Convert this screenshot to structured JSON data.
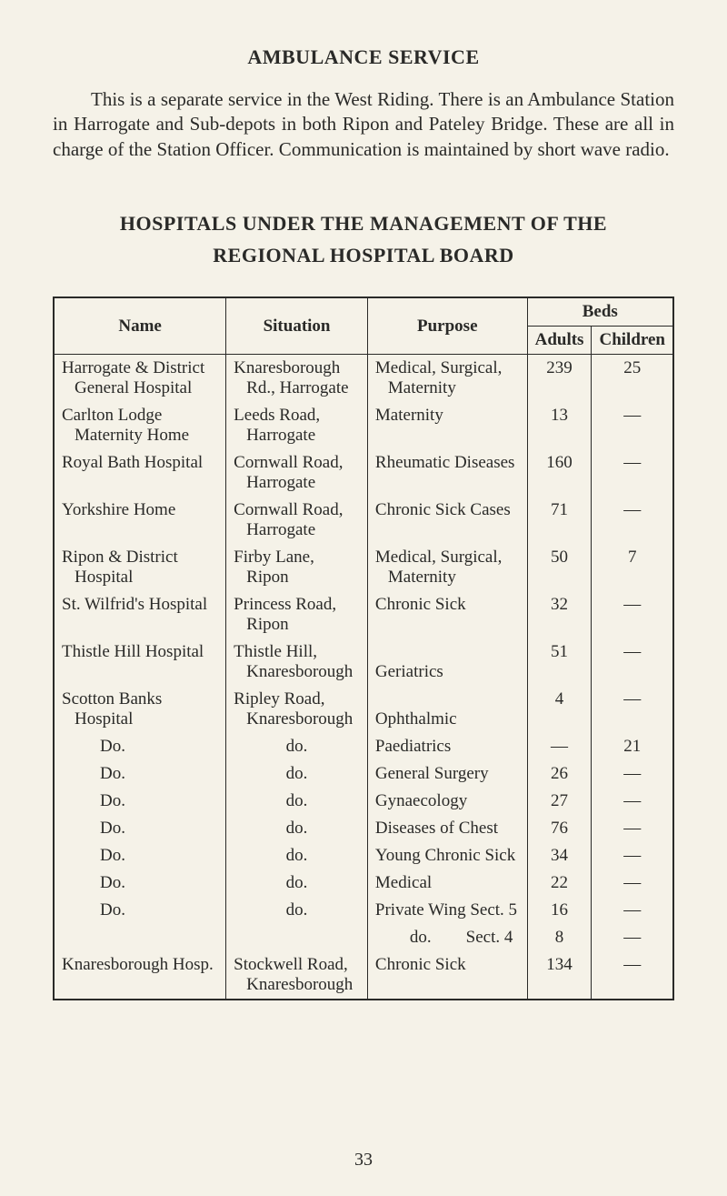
{
  "section_title": "AMBULANCE SERVICE",
  "body_text": "This is a separate service in the West Riding. There is an Ambu­lance Station in Harrogate and Sub-depots in both Ripon and Pateley Bridge. These are all in charge of the Station Officer. Communication is maintained by short wave radio.",
  "subheading_line1": "HOSPITALS UNDER THE MANAGEMENT OF THE",
  "subheading_line2": "REGIONAL HOSPITAL BOARD",
  "headers": {
    "name": "Name",
    "situation": "Situation",
    "purpose": "Purpose",
    "beds": "Beds",
    "adults": "Adults",
    "children": "Children"
  },
  "rows": [
    {
      "name_l1": "Harrogate & District",
      "name_l2": "General Hospital",
      "sit_l1": "Knaresborough",
      "sit_l2": "Rd., Harrogate",
      "pur_l1": "Medical, Surgical,",
      "pur_l2": "Maternity",
      "adults": "239",
      "children": "25"
    },
    {
      "name_l1": "Carlton Lodge",
      "name_l2": "Maternity Home",
      "sit_l1": "Leeds Road,",
      "sit_l2": "Harrogate",
      "pur_l1": "Maternity",
      "pur_l2": "",
      "adults": "13",
      "children": "—"
    },
    {
      "name_l1": "Royal Bath Hospital",
      "name_l2": "",
      "sit_l1": "Cornwall Road,",
      "sit_l2": "Harrogate",
      "pur_l1": "Rheumatic Diseases",
      "pur_l2": "",
      "adults": "160",
      "children": "—"
    },
    {
      "name_l1": "Yorkshire Home",
      "name_l2": "",
      "sit_l1": "Cornwall Road,",
      "sit_l2": "Harrogate",
      "pur_l1": "Chronic Sick Cases",
      "pur_l2": "",
      "adults": "71",
      "children": "—"
    },
    {
      "name_l1": "Ripon & District",
      "name_l2": "Hospital",
      "sit_l1": "Firby Lane,",
      "sit_l2": "Ripon",
      "pur_l1": "Medical, Surgical,",
      "pur_l2": "Maternity",
      "adults": "50",
      "children": "7"
    },
    {
      "name_l1": "St. Wilfrid's Hospital",
      "name_l2": "",
      "sit_l1": "Princess Road,",
      "sit_l2": "Ripon",
      "pur_l1": "Chronic Sick",
      "pur_l2": "",
      "adults": "32",
      "children": "—"
    },
    {
      "name_l1": "Thistle Hill Hospital",
      "name_l2": "",
      "sit_l1": "Thistle Hill,",
      "sit_l2": "Knaresborough",
      "pur_l1": "",
      "pur_l2": "Geriatrics",
      "adults": "51",
      "children": "—"
    },
    {
      "name_l1": "Scotton Banks",
      "name_l2": "Hospital",
      "sit_l1": "Ripley Road,",
      "sit_l2": "Knaresborough",
      "pur_l1": "",
      "pur_l2": "Ophthalmic",
      "adults": "4",
      "children": "—"
    },
    {
      "name_l1": "Do.",
      "sit_l1": "do.",
      "pur_l1": "Paediatrics",
      "adults": "—",
      "children": "21",
      "do": true
    },
    {
      "name_l1": "Do.",
      "sit_l1": "do.",
      "pur_l1": "General Surgery",
      "adults": "26",
      "children": "—",
      "do": true
    },
    {
      "name_l1": "Do.",
      "sit_l1": "do.",
      "pur_l1": "Gynaecology",
      "adults": "27",
      "children": "—",
      "do": true
    },
    {
      "name_l1": "Do.",
      "sit_l1": "do.",
      "pur_l1": "Diseases of Chest",
      "adults": "76",
      "children": "—",
      "do": true
    },
    {
      "name_l1": "Do.",
      "sit_l1": "do.",
      "pur_l1": "Young Chronic Sick",
      "adults": "34",
      "children": "—",
      "do": true
    },
    {
      "name_l1": "Do.",
      "sit_l1": "do.",
      "pur_l1": "Medical",
      "adults": "22",
      "children": "—",
      "do": true
    },
    {
      "name_l1": "Do.",
      "sit_l1": "do.",
      "pur_l1": "Private Wing Sect. 5",
      "adults": "16",
      "children": "—",
      "do": true
    },
    {
      "name_l1": "",
      "sit_l1": "",
      "pur_l1": "  do.  Sect. 4",
      "adults": "8",
      "children": "—",
      "plain": true
    },
    {
      "name_l1": "Knaresborough Hosp.",
      "name_l2": "",
      "sit_l1": "Stockwell Road,",
      "sit_l2": "Knaresborough",
      "pur_l1": "Chronic Sick",
      "pur_l2": "",
      "adults": "134",
      "children": "—"
    }
  ],
  "page_number": "33"
}
